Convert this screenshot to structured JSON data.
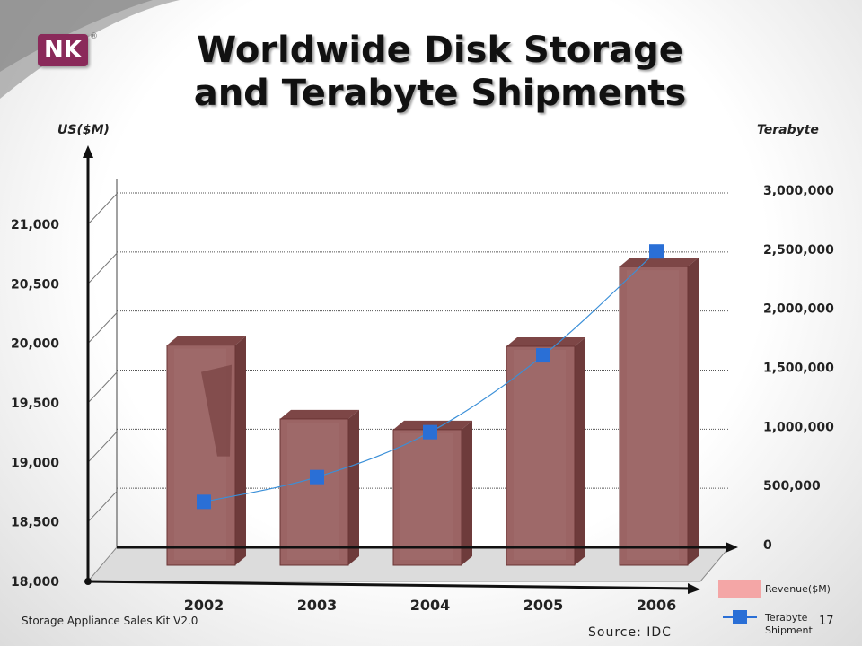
{
  "slide": {
    "title_line1": "Worldwide Disk Storage",
    "title_line2": "and Terabyte Shipments",
    "footer": "Storage Appliance Sales Kit V2.0",
    "page_number": "17",
    "source": "Source:  IDC",
    "logo_text": "NK",
    "logo_reg": "®"
  },
  "chart_data": {
    "type": "bar",
    "categories": [
      "2002",
      "2003",
      "2004",
      "2005",
      "2006"
    ],
    "series": [
      {
        "name": "Revenue($M)",
        "type": "bar",
        "axis": "left",
        "values": [
          20000,
          19380,
          19290,
          19990,
          20660
        ]
      },
      {
        "name": "Terabyte Shipment",
        "type": "line",
        "axis": "right",
        "values": [
          400000,
          610000,
          990000,
          1640000,
          2520000
        ]
      }
    ],
    "y_left": {
      "label": "US($M)",
      "min": 18000,
      "max": 21000,
      "ticks": [
        "18,000",
        "18,500",
        "19,000",
        "19,500",
        "20,000",
        "20,500",
        "21,000"
      ]
    },
    "y_right": {
      "label": "Terabyte",
      "min": 0,
      "max": 3000000,
      "ticks": [
        "0",
        "500,000",
        "1,000,000",
        "1,500,000",
        "2,000,000",
        "2,500,000",
        "3,000,000"
      ]
    },
    "legend": [
      "Revenue($M)",
      "Terabyte Shipment"
    ],
    "colors": {
      "bar": "#9b6464",
      "bar_dark": "#6e3b3b",
      "line": "#3a8fd8",
      "marker": "#2a6fd6",
      "legend_bar": "#f4a6a6"
    },
    "grid": true,
    "legend_position": "bottom-right"
  }
}
